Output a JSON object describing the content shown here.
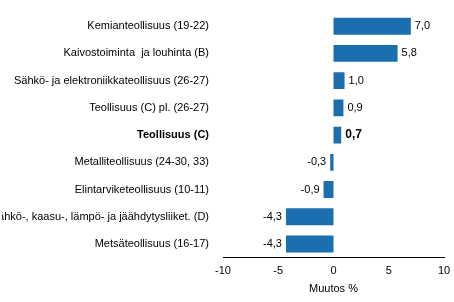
{
  "chart_data": {
    "type": "bar",
    "orientation": "horizontal",
    "categories": [
      "Kemianteollisuus (19-22)",
      "Kaivostoiminta  ja louhinta (B)",
      "Sähkö- ja elektroniikkateollisuus (26-27)",
      "Teollisuus (C) pl. (26-27)",
      "Teollisuus (C)",
      "Metalliteollisuus (24-30, 33)",
      "Elintarviketeollisuus (10-11)",
      "Sähkö-, kaasu-, lämpö- ja jäähdytysliiket. (D)",
      "Metsäteollisuus (16-17)"
    ],
    "values": [
      7.0,
      5.8,
      1.0,
      0.9,
      0.7,
      -0.3,
      -0.9,
      -4.3,
      -4.3
    ],
    "value_labels": [
      "7,0",
      "5,8",
      "1,0",
      "0,9",
      "0,7",
      "-0,3",
      "-0,9",
      "-4,3",
      "-4,3"
    ],
    "data_labels": true,
    "color": "#1b6fae",
    "x_label": "Muutos %",
    "xlim": [
      -10,
      10
    ],
    "xticks": [
      -10,
      -5,
      0,
      5,
      10
    ],
    "grid": false
  }
}
